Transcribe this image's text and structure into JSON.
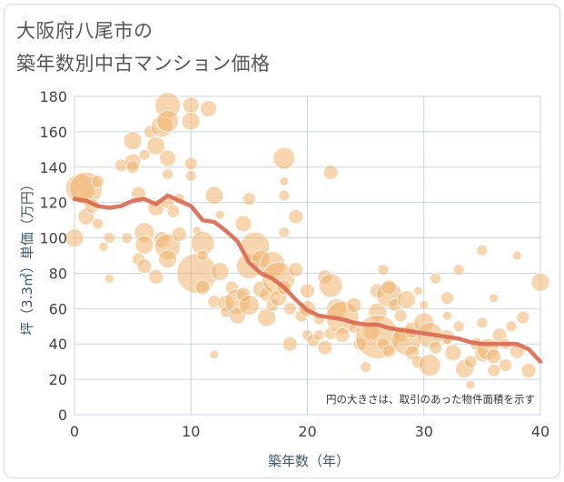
{
  "title_line1": "大阪府八尾市の",
  "title_line2": "築年数別中古マンション価格",
  "chart_data": {
    "type": "scatter",
    "xlabel": "築年数（年）",
    "ylabel": "坪（3.3㎡）単価（万円）",
    "xlim": [
      0,
      40
    ],
    "ylim": [
      0,
      180
    ],
    "xticks": [
      "0",
      "10",
      "20",
      "30",
      "40"
    ],
    "yticks": [
      "0",
      "20",
      "40",
      "60",
      "80",
      "100",
      "120",
      "140",
      "160",
      "180"
    ],
    "grid": true,
    "note": "円の大きさは、取引のあった物件面積を示す",
    "colors": {
      "bubble": "#f0b36e",
      "line": "#d9684f",
      "grid": "#c9d6df"
    },
    "points": [
      [
        0,
        100,
        10
      ],
      [
        0.5,
        128,
        16
      ],
      [
        1,
        128,
        18
      ],
      [
        1,
        112,
        9
      ],
      [
        1.5,
        118,
        8
      ],
      [
        2,
        132,
        7
      ],
      [
        2,
        108,
        6
      ],
      [
        2.5,
        95,
        5
      ],
      [
        3,
        100,
        6
      ],
      [
        3,
        77,
        5
      ],
      [
        4,
        141,
        7
      ],
      [
        4.5,
        100,
        6
      ],
      [
        5,
        155,
        10
      ],
      [
        5,
        143,
        9
      ],
      [
        5,
        140,
        7
      ],
      [
        5.5,
        125,
        8
      ],
      [
        5.5,
        88,
        7
      ],
      [
        6,
        147,
        6
      ],
      [
        6,
        103,
        11
      ],
      [
        6,
        96,
        10
      ],
      [
        6,
        84,
        8
      ],
      [
        6.5,
        160,
        7
      ],
      [
        7,
        152,
        10
      ],
      [
        7,
        117,
        9
      ],
      [
        7,
        78,
        8
      ],
      [
        7.5,
        163,
        12
      ],
      [
        7.5,
        99,
        9
      ],
      [
        8,
        175,
        14
      ],
      [
        8,
        166,
        12
      ],
      [
        8,
        145,
        9
      ],
      [
        8,
        136,
        6
      ],
      [
        8,
        120,
        7
      ],
      [
        8,
        95,
        14
      ],
      [
        8,
        88,
        10
      ],
      [
        8.5,
        115,
        7
      ],
      [
        9,
        122,
        6
      ],
      [
        9,
        102,
        8
      ],
      [
        10,
        175,
        9
      ],
      [
        10,
        166,
        10
      ],
      [
        10,
        142,
        7
      ],
      [
        10,
        135,
        6
      ],
      [
        10.5,
        80,
        22
      ],
      [
        10.5,
        104,
        5
      ],
      [
        11,
        97,
        13
      ],
      [
        11,
        72,
        8
      ],
      [
        11,
        90,
        6
      ],
      [
        11.5,
        173,
        9
      ],
      [
        12,
        124,
        10
      ],
      [
        12,
        64,
        7
      ],
      [
        12,
        34,
        5
      ],
      [
        12.5,
        113,
        5
      ],
      [
        12.5,
        81,
        10
      ],
      [
        13,
        63,
        9
      ],
      [
        13,
        58,
        6
      ],
      [
        13.5,
        72,
        7
      ],
      [
        14,
        64,
        14
      ],
      [
        14,
        56,
        9
      ],
      [
        14.5,
        108,
        9
      ],
      [
        14.5,
        68,
        8
      ],
      [
        15,
        122,
        7
      ],
      [
        15,
        84,
        14
      ],
      [
        15,
        62,
        11
      ],
      [
        15.5,
        95,
        16
      ],
      [
        16,
        88,
        10
      ],
      [
        16,
        71,
        9
      ],
      [
        16.5,
        68,
        8
      ],
      [
        16.5,
        55,
        10
      ],
      [
        17,
        85,
        14
      ],
      [
        17,
        62,
        7
      ],
      [
        17.5,
        77,
        18
      ],
      [
        17.5,
        66,
        9
      ],
      [
        18,
        145,
        12
      ],
      [
        18,
        132,
        5
      ],
      [
        18,
        124,
        6
      ],
      [
        18,
        103,
        6
      ],
      [
        18,
        72,
        8
      ],
      [
        18.5,
        60,
        7
      ],
      [
        18.5,
        40,
        8
      ],
      [
        19,
        112,
        8
      ],
      [
        19,
        82,
        8
      ],
      [
        19.5,
        56,
        7
      ],
      [
        20,
        60,
        9
      ],
      [
        20,
        70,
        8
      ],
      [
        20,
        45,
        6
      ],
      [
        20.5,
        42,
        7
      ],
      [
        21,
        54,
        6
      ],
      [
        21,
        45,
        6
      ],
      [
        21.5,
        38,
        8
      ],
      [
        21.5,
        78,
        8
      ],
      [
        22,
        137,
        8
      ],
      [
        22,
        73,
        13
      ],
      [
        22,
        46,
        7
      ],
      [
        22.5,
        60,
        11
      ],
      [
        23,
        55,
        18
      ],
      [
        23,
        45,
        8
      ],
      [
        24,
        62,
        8
      ],
      [
        24,
        49,
        6
      ],
      [
        24.5,
        40,
        7
      ],
      [
        25,
        27,
        6
      ],
      [
        25.5,
        47,
        9
      ],
      [
        26,
        70,
        8
      ],
      [
        26,
        58,
        10
      ],
      [
        26,
        44,
        24
      ],
      [
        26.5,
        82,
        6
      ],
      [
        26.5,
        40,
        7
      ],
      [
        27,
        68,
        14
      ],
      [
        27,
        72,
        8
      ],
      [
        27,
        36,
        7
      ],
      [
        27.5,
        62,
        7
      ],
      [
        28,
        56,
        7
      ],
      [
        28,
        45,
        8
      ],
      [
        28.5,
        65,
        10
      ],
      [
        28.5,
        42,
        16
      ],
      [
        29,
        48,
        9
      ],
      [
        29,
        35,
        8
      ],
      [
        29.5,
        70,
        5
      ],
      [
        29.5,
        30,
        7
      ],
      [
        30,
        62,
        5
      ],
      [
        30,
        52,
        11
      ],
      [
        30.5,
        45,
        14
      ],
      [
        30.5,
        28,
        12
      ],
      [
        31,
        77,
        6
      ],
      [
        31,
        38,
        7
      ],
      [
        32,
        66,
        7
      ],
      [
        32,
        56,
        5
      ],
      [
        32,
        44,
        8
      ],
      [
        32,
        42,
        5
      ],
      [
        32.5,
        35,
        9
      ],
      [
        33,
        82,
        6
      ],
      [
        33,
        50,
        6
      ],
      [
        33.5,
        26,
        10
      ],
      [
        34,
        17,
        5
      ],
      [
        34,
        30,
        7
      ],
      [
        34.5,
        40,
        7
      ],
      [
        35,
        93,
        6
      ],
      [
        35,
        52,
        6
      ],
      [
        35,
        34,
        8
      ],
      [
        35.5,
        37,
        12
      ],
      [
        36,
        33,
        8
      ],
      [
        36,
        25,
        7
      ],
      [
        36,
        66,
        5
      ],
      [
        36.5,
        45,
        8
      ],
      [
        37,
        40,
        6
      ],
      [
        37,
        28,
        7
      ],
      [
        37.5,
        50,
        6
      ],
      [
        38,
        90,
        5
      ],
      [
        38,
        36,
        8
      ],
      [
        38.5,
        55,
        7
      ],
      [
        39,
        25,
        8
      ],
      [
        40,
        75,
        10
      ]
    ],
    "trend": [
      [
        0,
        122
      ],
      [
        1,
        121
      ],
      [
        2,
        118
      ],
      [
        3,
        117
      ],
      [
        4,
        118
      ],
      [
        5,
        121
      ],
      [
        6,
        122
      ],
      [
        7,
        119
      ],
      [
        8,
        124
      ],
      [
        9,
        121
      ],
      [
        10,
        118
      ],
      [
        11,
        110
      ],
      [
        12,
        109
      ],
      [
        13,
        104
      ],
      [
        14,
        98
      ],
      [
        15,
        86
      ],
      [
        16,
        80
      ],
      [
        17,
        77
      ],
      [
        18,
        72
      ],
      [
        19,
        65
      ],
      [
        20,
        59
      ],
      [
        21,
        56
      ],
      [
        22,
        55
      ],
      [
        23,
        54
      ],
      [
        24,
        52
      ],
      [
        25,
        51
      ],
      [
        26,
        51
      ],
      [
        27,
        49
      ],
      [
        28,
        48
      ],
      [
        29,
        47
      ],
      [
        30,
        46
      ],
      [
        31,
        45
      ],
      [
        32,
        44
      ],
      [
        33,
        43
      ],
      [
        34,
        41
      ],
      [
        35,
        40
      ],
      [
        36,
        40
      ],
      [
        37,
        40
      ],
      [
        38,
        40
      ],
      [
        39,
        37
      ],
      [
        40,
        30
      ]
    ]
  }
}
